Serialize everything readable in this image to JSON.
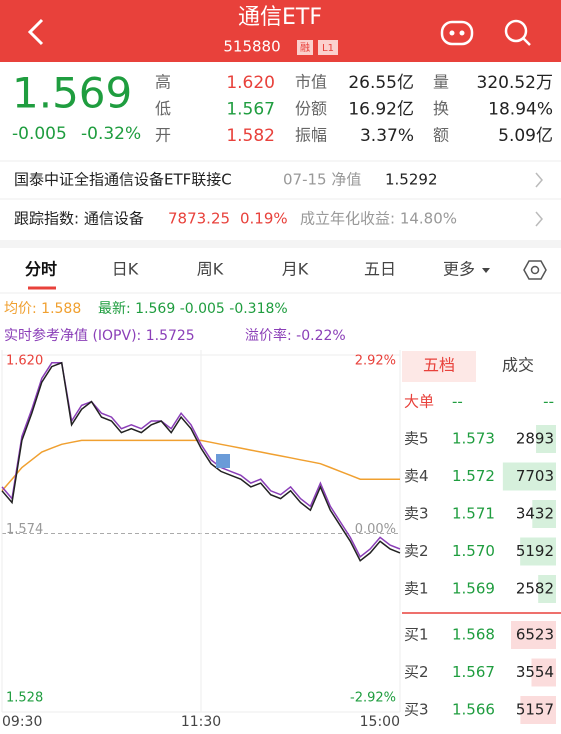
{
  "header": {
    "title": "通信ETF",
    "code": "515880",
    "badges": [
      "融",
      "L1"
    ]
  },
  "quote": {
    "price": "1.569",
    "change": "-0.005",
    "change_pct": "-0.32%",
    "color": "#1f9d3f",
    "stats": [
      [
        {
          "label": "高",
          "value": "1.620",
          "color": "#e8413b"
        },
        {
          "label": "市值",
          "value": "26.55亿"
        },
        {
          "label": "量",
          "value": "320.52万"
        }
      ],
      [
        {
          "label": "低",
          "value": "1.567",
          "color": "#1f9d3f"
        },
        {
          "label": "份额",
          "value": "16.92亿"
        },
        {
          "label": "换",
          "value": "18.94%"
        }
      ],
      [
        {
          "label": "开",
          "value": "1.582",
          "color": "#e8413b"
        },
        {
          "label": "振幅",
          "value": "3.37%"
        },
        {
          "label": "额",
          "value": "5.09亿"
        }
      ]
    ]
  },
  "fund_link": {
    "name": "国泰中证全指通信设备ETF联接C",
    "date_label": "07-15 净值",
    "nav": "1.5292"
  },
  "tracking": {
    "label": "跟踪指数: 通信设备",
    "value": "7873.25",
    "pct": "0.19%",
    "annual": "成立年化收益: 14.80%"
  },
  "tabs": [
    "分时",
    "日K",
    "周K",
    "月K",
    "五日",
    "更多"
  ],
  "info": {
    "avg": "均价: 1.588",
    "latest": "最新: 1.569  -0.005  -0.318%",
    "iopv": "实时参考净值 (IOPV): 1.5725",
    "premium": "溢价率: -0.22%"
  },
  "chart_data": {
    "type": "line",
    "x": [
      0,
      6,
      12,
      18,
      24,
      30,
      36,
      42,
      48,
      54,
      60,
      66,
      72,
      78,
      84,
      90,
      96,
      102,
      108,
      114,
      120,
      126,
      132,
      138,
      144,
      150,
      156,
      162,
      168,
      174,
      180,
      186,
      192,
      198,
      204,
      210,
      216,
      222,
      228,
      234,
      240
    ],
    "xlim": [
      0,
      240
    ],
    "xticks": [
      {
        "value": 0,
        "label": "09:30"
      },
      {
        "value": 120,
        "label": "11:30"
      },
      {
        "value": 240,
        "label": "15:00"
      }
    ],
    "ylim": [
      1.528,
      1.62
    ],
    "yticks": [
      {
        "value": 1.62,
        "label": "1.620"
      },
      {
        "value": 1.574,
        "label": "1.574"
      },
      {
        "value": 1.528,
        "label": "1.528"
      }
    ],
    "y2lim": [
      -2.92,
      2.92
    ],
    "y2ticks": [
      {
        "value": 2.92,
        "label": "2.92%"
      },
      {
        "value": 0,
        "label": "0.00%"
      },
      {
        "value": -2.92,
        "label": "-2.92%"
      }
    ],
    "series": [
      {
        "color": "#f0a030",
        "values": [
          1.585,
          1.588,
          1.591,
          1.593,
          1.595,
          1.596,
          1.597,
          1.5975,
          1.598,
          1.598,
          1.598,
          1.598,
          1.598,
          1.598,
          1.598,
          1.598,
          1.598,
          1.598,
          1.598,
          1.598,
          1.598,
          1.5975,
          1.597,
          1.5965,
          1.596,
          1.5955,
          1.595,
          1.5945,
          1.594,
          1.5935,
          1.593,
          1.5925,
          1.592,
          1.591,
          1.59,
          1.589,
          1.588,
          1.588,
          1.588,
          1.588,
          1.588
        ]
      },
      {
        "color": "#8b3fb8",
        "values": [
          1.586,
          1.583,
          1.599,
          1.606,
          1.614,
          1.618,
          1.618,
          1.603,
          1.607,
          1.608,
          1.605,
          1.604,
          1.601,
          1.602,
          1.601,
          1.603,
          1.603,
          1.601,
          1.605,
          1.602,
          1.597,
          1.593,
          1.591,
          1.59,
          1.589,
          1.587,
          1.588,
          1.585,
          1.584,
          1.586,
          1.583,
          1.581,
          1.587,
          1.581,
          1.577,
          1.573,
          1.568,
          1.57,
          1.573,
          1.571,
          1.57
        ]
      },
      {
        "color": "#222222",
        "values": [
          1.585,
          1.582,
          1.598,
          1.605,
          1.613,
          1.617,
          1.618,
          1.602,
          1.606,
          1.608,
          1.604,
          1.603,
          1.6,
          1.601,
          1.6,
          1.602,
          1.603,
          1.6,
          1.604,
          1.601,
          1.596,
          1.592,
          1.59,
          1.589,
          1.588,
          1.586,
          1.587,
          1.584,
          1.583,
          1.585,
          1.582,
          1.58,
          1.586,
          1.58,
          1.576,
          1.572,
          1.567,
          1.569,
          1.572,
          1.57,
          1.569
        ]
      }
    ]
  },
  "order_book": {
    "tabs": [
      "五档",
      "成交"
    ],
    "big_order": {
      "label": "大单",
      "price": "--",
      "volume": "--"
    },
    "asks": [
      {
        "label": "卖5",
        "price": "1.573",
        "volume": 2893
      },
      {
        "label": "卖4",
        "price": "1.572",
        "volume": 7703
      },
      {
        "label": "卖3",
        "price": "1.571",
        "volume": 3432
      },
      {
        "label": "卖2",
        "price": "1.570",
        "volume": 5192
      },
      {
        "label": "卖1",
        "price": "1.569",
        "volume": 2582
      }
    ],
    "bids": [
      {
        "label": "买1",
        "price": "1.568",
        "volume": 6523
      },
      {
        "label": "买2",
        "price": "1.567",
        "volume": 3554
      },
      {
        "label": "买3",
        "price": "1.566",
        "volume": 5157
      }
    ]
  }
}
